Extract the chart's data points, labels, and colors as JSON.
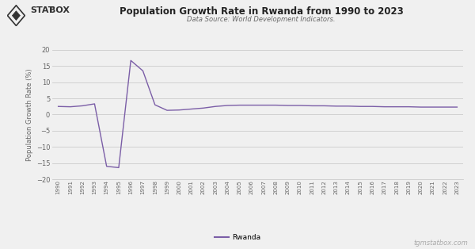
{
  "title": "Population Growth Rate in Rwanda from 1990 to 2023",
  "subtitle": "Data Source: World Development Indicators.",
  "ylabel": "Population Growth Rate (%)",
  "legend_label": "Rwanda",
  "watermark": "tgmstatbox.com",
  "line_color": "#7b5ea7",
  "background_color": "#f0f0f0",
  "plot_bg_color": "#f0f0f0",
  "ylim": [
    -20,
    20
  ],
  "yticks": [
    -20,
    -15,
    -10,
    -5,
    0,
    5,
    10,
    15,
    20
  ],
  "years": [
    1990,
    1991,
    1992,
    1993,
    1994,
    1995,
    1996,
    1997,
    1998,
    1999,
    2000,
    2001,
    2002,
    2003,
    2004,
    2005,
    2006,
    2007,
    2008,
    2009,
    2010,
    2011,
    2012,
    2013,
    2014,
    2015,
    2016,
    2017,
    2018,
    2019,
    2020,
    2021,
    2022,
    2023
  ],
  "values": [
    2.5,
    2.4,
    2.7,
    3.3,
    -16.0,
    -16.4,
    16.7,
    13.5,
    3.0,
    1.3,
    1.4,
    1.7,
    2.0,
    2.5,
    2.8,
    2.9,
    2.9,
    2.9,
    2.9,
    2.8,
    2.8,
    2.7,
    2.7,
    2.6,
    2.6,
    2.5,
    2.5,
    2.4,
    2.4,
    2.4,
    2.3,
    2.3,
    2.3,
    2.3
  ]
}
